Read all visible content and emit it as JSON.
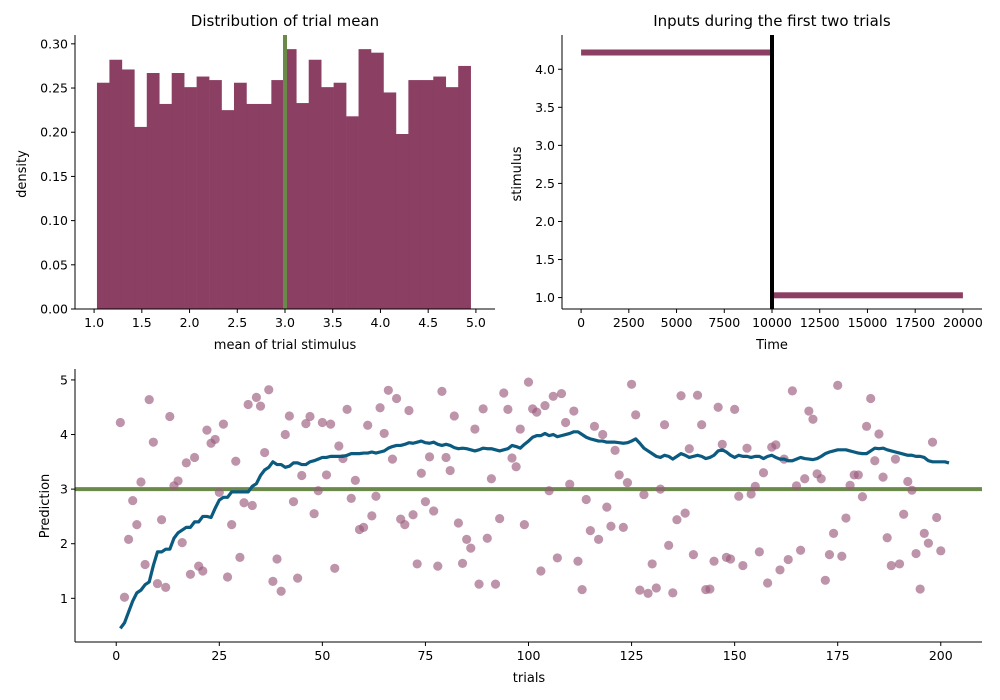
{
  "chart_data": [
    {
      "type": "bar",
      "title": "Distribution of trial mean",
      "xlabel": "mean of trial stimulus",
      "ylabel": "density",
      "xlim": [
        0.8,
        5.2
      ],
      "ylim": [
        0,
        0.31
      ],
      "xticks": [
        1.0,
        1.5,
        2.0,
        2.5,
        3.0,
        3.5,
        4.0,
        4.5,
        5.0
      ],
      "xtick_labels": [
        "1.0",
        "1.5",
        "2.0",
        "2.5",
        "3.0",
        "3.5",
        "4.0",
        "4.5",
        "5.0"
      ],
      "yticks": [
        0.0,
        0.05,
        0.1,
        0.15,
        0.2,
        0.25,
        0.3
      ],
      "ytick_labels": [
        "0.00",
        "0.05",
        "0.10",
        "0.15",
        "0.20",
        "0.25",
        "0.30"
      ],
      "bin_start": 1.03,
      "bin_width": 0.1305,
      "values": [
        0.256,
        0.282,
        0.271,
        0.206,
        0.267,
        0.232,
        0.267,
        0.251,
        0.263,
        0.259,
        0.225,
        0.256,
        0.232,
        0.232,
        0.259,
        0.294,
        0.233,
        0.282,
        0.251,
        0.256,
        0.218,
        0.294,
        0.29,
        0.245,
        0.198,
        0.259,
        0.259,
        0.263,
        0.251,
        0.275
      ],
      "bar_color": "#8b3f63",
      "vline": {
        "x": 3.0,
        "color": "#6b8a4a"
      }
    },
    {
      "type": "line",
      "title": "Inputs during the first two trials",
      "xlabel": "Time",
      "ylabel": "stimulus",
      "xlim": [
        -1000,
        21000
      ],
      "ylim": [
        0.85,
        4.45
      ],
      "xticks": [
        0,
        2500,
        5000,
        7500,
        10000,
        12500,
        15000,
        17500,
        20000
      ],
      "xtick_labels": [
        "0",
        "2500",
        "5000",
        "7500",
        "10000",
        "12500",
        "15000",
        "17500",
        "20000"
      ],
      "yticks": [
        1.0,
        1.5,
        2.0,
        2.5,
        3.0,
        3.5,
        4.0
      ],
      "ytick_labels": [
        "1.0",
        "1.5",
        "2.0",
        "2.5",
        "3.0",
        "3.5",
        "4.0"
      ],
      "segments": [
        {
          "x": [
            0,
            10000
          ],
          "y": 4.22
        },
        {
          "x": [
            10000,
            20000
          ],
          "y": 1.03
        }
      ],
      "line_color": "#8b3f63",
      "vline": {
        "x": 10000,
        "color": "#000000"
      }
    },
    {
      "type": "scatter",
      "xlabel": "trials",
      "ylabel": "Prediction",
      "xlim": [
        -10,
        210
      ],
      "ylim": [
        0.2,
        5.2
      ],
      "xticks": [
        0,
        25,
        50,
        75,
        100,
        125,
        150,
        175,
        200
      ],
      "xtick_labels": [
        "0",
        "25",
        "50",
        "75",
        "100",
        "125",
        "150",
        "175",
        "200"
      ],
      "yticks": [
        1,
        2,
        3,
        4,
        5
      ],
      "ytick_labels": [
        "1",
        "2",
        "3",
        "4",
        "5"
      ],
      "hline": {
        "y": 3.0,
        "color": "#6b8a4a"
      },
      "points_color": "#9b5a7c",
      "line_color": "#0b5a80",
      "points": [
        4.22,
        1.02,
        2.08,
        2.79,
        2.35,
        3.13,
        1.62,
        4.64,
        3.86,
        1.27,
        2.44,
        1.2,
        4.33,
        3.06,
        3.15,
        2.02,
        3.48,
        1.44,
        3.58,
        1.59,
        1.5,
        4.08,
        3.84,
        3.91,
        2.94,
        4.19,
        1.39,
        2.35,
        3.51,
        1.75,
        2.75,
        4.55,
        2.7,
        4.68,
        4.52,
        3.67,
        4.82,
        1.31,
        1.72,
        1.13,
        4.0,
        4.34,
        2.77,
        1.37,
        3.25,
        4.2,
        4.33,
        2.55,
        2.97,
        4.22,
        3.26,
        4.19,
        1.55,
        3.79,
        3.56,
        4.46,
        2.83,
        3.16,
        2.26,
        2.3,
        4.17,
        2.51,
        2.87,
        4.49,
        4.02,
        4.81,
        3.55,
        4.66,
        2.45,
        2.35,
        4.44,
        2.53,
        1.63,
        3.29,
        2.77,
        3.59,
        2.6,
        1.59,
        4.79,
        3.58,
        3.34,
        4.34,
        2.38,
        1.64,
        2.08,
        1.92,
        4.1,
        1.26,
        4.47,
        2.1,
        3.19,
        1.26,
        2.46,
        4.76,
        4.46,
        3.57,
        3.41,
        4.1,
        2.35,
        4.96,
        4.47,
        4.41,
        1.5,
        4.53,
        2.97,
        4.7,
        1.74,
        4.75,
        4.22,
        3.09,
        4.43,
        1.68,
        1.16,
        2.81,
        2.24,
        4.15,
        2.08,
        4.0,
        2.67,
        2.32,
        3.71,
        3.26,
        2.3,
        3.12,
        4.92,
        4.36,
        1.15,
        2.9,
        1.09,
        1.63,
        1.19,
        3.0,
        4.18,
        1.97,
        1.1,
        2.44,
        4.71,
        2.56,
        3.74,
        1.8,
        4.72,
        4.18,
        1.16,
        1.17,
        1.68,
        4.5,
        3.82,
        1.75,
        1.72,
        4.46,
        2.87,
        1.6,
        3.75,
        2.91,
        3.05,
        1.85,
        3.3,
        1.28,
        3.77,
        3.81,
        1.52,
        3.55,
        1.71,
        4.8,
        3.06,
        1.88,
        3.19,
        4.43,
        4.28,
        3.28,
        3.19,
        1.33,
        1.8,
        2.19,
        4.9,
        1.77,
        2.47,
        3.07,
        3.26,
        3.26,
        2.86,
        4.15,
        4.66,
        3.52,
        4.01,
        3.22,
        2.11,
        1.6,
        3.55,
        1.63,
        2.54,
        3.14,
        2.98,
        1.82,
        1.17,
        2.19,
        2.01,
        3.86,
        2.48,
        1.87
      ],
      "line": [
        0.45,
        0.55,
        0.75,
        0.95,
        1.1,
        1.15,
        1.25,
        1.3,
        1.6,
        1.85,
        1.85,
        1.9,
        1.9,
        2.1,
        2.2,
        2.25,
        2.3,
        2.3,
        2.4,
        2.4,
        2.5,
        2.5,
        2.48,
        2.65,
        2.8,
        2.85,
        2.85,
        2.95,
        2.95,
        2.95,
        2.95,
        2.95,
        3.05,
        3.1,
        3.25,
        3.35,
        3.4,
        3.5,
        3.45,
        3.45,
        3.4,
        3.42,
        3.48,
        3.48,
        3.45,
        3.45,
        3.5,
        3.52,
        3.55,
        3.58,
        3.58,
        3.6,
        3.6,
        3.6,
        3.6,
        3.62,
        3.65,
        3.65,
        3.65,
        3.66,
        3.66,
        3.68,
        3.66,
        3.68,
        3.7,
        3.75,
        3.78,
        3.8,
        3.8,
        3.82,
        3.85,
        3.84,
        3.86,
        3.88,
        3.85,
        3.84,
        3.86,
        3.82,
        3.8,
        3.82,
        3.8,
        3.76,
        3.74,
        3.75,
        3.74,
        3.72,
        3.7,
        3.72,
        3.75,
        3.74,
        3.74,
        3.72,
        3.7,
        3.72,
        3.74,
        3.8,
        3.78,
        3.75,
        3.82,
        3.88,
        3.95,
        3.98,
        3.98,
        4.02,
        3.98,
        4.0,
        3.96,
        3.98,
        4.0,
        4.02,
        4.05,
        4.05,
        4.0,
        3.95,
        3.92,
        3.9,
        3.88,
        3.88,
        3.86,
        3.86,
        3.86,
        3.85,
        3.84,
        3.85,
        3.88,
        3.92,
        3.84,
        3.75,
        3.7,
        3.65,
        3.6,
        3.58,
        3.62,
        3.6,
        3.55,
        3.6,
        3.65,
        3.62,
        3.58,
        3.6,
        3.62,
        3.6,
        3.56,
        3.58,
        3.62,
        3.7,
        3.72,
        3.68,
        3.62,
        3.58,
        3.62,
        3.6,
        3.6,
        3.58,
        3.6,
        3.6,
        3.56,
        3.6,
        3.62,
        3.58,
        3.55,
        3.55,
        3.52,
        3.52,
        3.55,
        3.58,
        3.56,
        3.55,
        3.54,
        3.56,
        3.6,
        3.65,
        3.68,
        3.7,
        3.72,
        3.72,
        3.72,
        3.7,
        3.68,
        3.66,
        3.65,
        3.65,
        3.7,
        3.75,
        3.74,
        3.75,
        3.72,
        3.7,
        3.68,
        3.66,
        3.64,
        3.62,
        3.62,
        3.6,
        3.6,
        3.58,
        3.52,
        3.5,
        3.5,
        3.5,
        3.5,
        3.48
      ]
    }
  ]
}
